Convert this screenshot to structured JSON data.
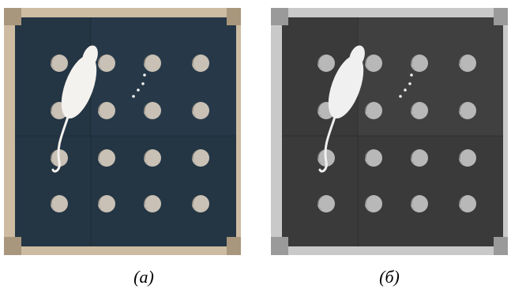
{
  "figure": {
    "panels": [
      {
        "caption": "(а)"
      },
      {
        "caption": "(б)"
      }
    ]
  }
}
